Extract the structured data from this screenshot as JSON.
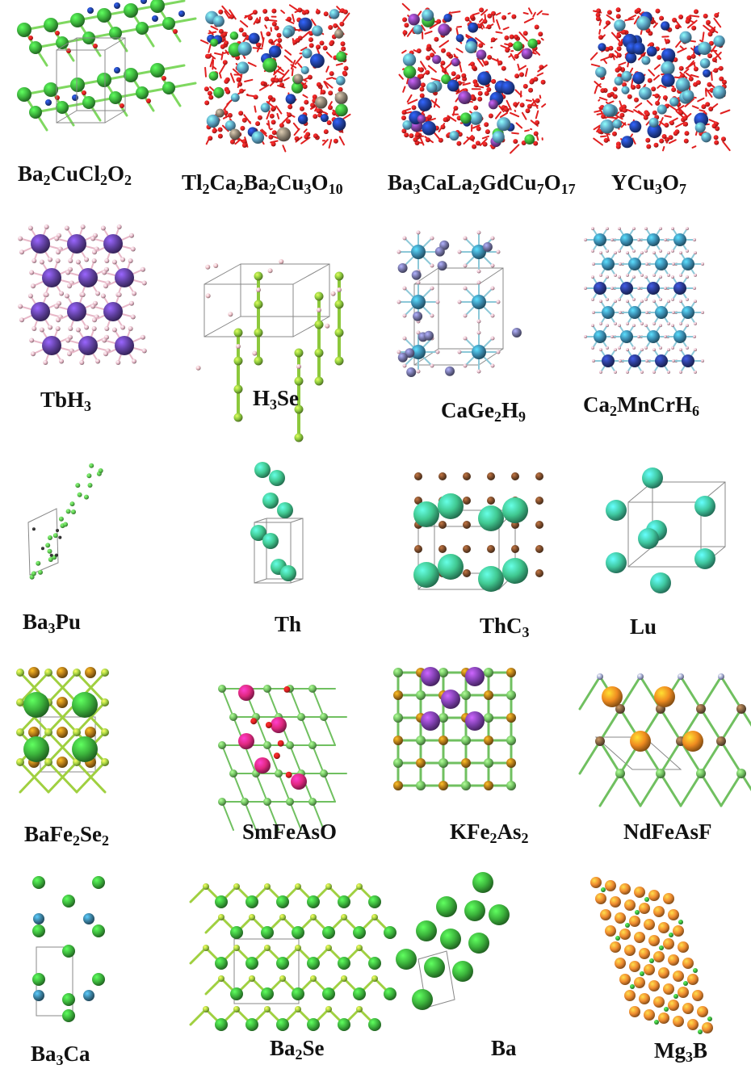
{
  "title": "",
  "rows": [
    [
      {
        "formula": [
          "Ba",
          "2",
          "CuCl",
          "2",
          "O",
          "2"
        ],
        "style": "ba2cucl2o2",
        "colors": [
          "#3cb43c",
          "#2040a0",
          "#e02020",
          "#7fd860"
        ]
      },
      {
        "formula": [
          "Tl",
          "2",
          "Ca",
          "2",
          "Ba",
          "2",
          "Cu",
          "3",
          "O",
          "10"
        ],
        "style": "dense",
        "colors": [
          "#e02020",
          "#2040a0",
          "#5aa0c0",
          "#8a8070",
          "#3cb43c"
        ]
      },
      {
        "formula": [
          "Ba",
          "3",
          "CaLa",
          "2",
          "GdCu",
          "7",
          "O",
          "17"
        ],
        "style": "dense",
        "colors": [
          "#e02020",
          "#2040a0",
          "#3cb43c",
          "#8040a0",
          "#5aa0c0"
        ]
      },
      {
        "formula": [
          "YCu",
          "3",
          "O",
          "7"
        ],
        "style": "dense",
        "colors": [
          "#e02020",
          "#2040a0",
          "#5aa0c0"
        ]
      }
    ],
    [
      {
        "formula": [
          "TbH",
          "3"
        ],
        "style": "hydride",
        "colors": [
          "#6040a0",
          "#e8b8c8"
        ]
      },
      {
        "formula": [
          "H",
          "3",
          "Se"
        ],
        "style": "h3se",
        "colors": [
          "#8cc83c",
          "#f0c0c8"
        ]
      },
      {
        "formula": [
          "CaGe",
          "2",
          "H",
          "9"
        ],
        "style": "hydride2",
        "colors": [
          "#3a8cb0",
          "#7070a0",
          "#e8b8c8"
        ]
      },
      {
        "formula": [
          "Ca",
          "2",
          "MnCrH",
          "6"
        ],
        "style": "hydride3",
        "colors": [
          "#3a8cb0",
          "#2a3a90",
          "#8040a0",
          "#e8b8c8"
        ]
      }
    ],
    [
      {
        "formula": [
          "Ba",
          "3",
          "Pu"
        ],
        "style": "sparse",
        "colors": [
          "#5cc850",
          "#303030"
        ]
      },
      {
        "formula": [
          "Th"
        ],
        "style": "th",
        "colors": [
          "#40c890"
        ]
      },
      {
        "formula": [
          "ThC",
          "3"
        ],
        "style": "thc3",
        "colors": [
          "#40c890",
          "#7a4a2a"
        ]
      },
      {
        "formula": [
          "Lu"
        ],
        "style": "lu",
        "colors": [
          "#40c8a0"
        ]
      }
    ],
    [
      {
        "formula": [
          "BaFe",
          "2",
          "Se",
          "2"
        ],
        "style": "bafe2se2",
        "colors": [
          "#3cb43c",
          "#b07818",
          "#a0d040"
        ]
      },
      {
        "formula": [
          "SmFeAsO"
        ],
        "style": "smfeaso",
        "colors": [
          "#e02880",
          "#e02020",
          "#70c060"
        ]
      },
      {
        "formula": [
          "KFe",
          "2",
          "As",
          "2"
        ],
        "style": "kfe2as2",
        "colors": [
          "#8040b0",
          "#b07818",
          "#70c060"
        ]
      },
      {
        "formula": [
          "NdFeAsF"
        ],
        "style": "ndfeasf",
        "colors": [
          "#f08c20",
          "#806040",
          "#70c060",
          "#a0a8d0"
        ]
      }
    ],
    [
      {
        "formula": [
          "Ba",
          "3",
          "Ca"
        ],
        "style": "ba3ca",
        "colors": [
          "#3cb43c",
          "#3a80a0"
        ]
      },
      {
        "formula": [
          "Ba",
          "2",
          "Se"
        ],
        "style": "ba2se",
        "colors": [
          "#3cb43c",
          "#a0d040"
        ]
      },
      {
        "formula": [
          "Ba"
        ],
        "style": "ba",
        "colors": [
          "#3cb43c"
        ]
      },
      {
        "formula": [
          "Mg",
          "3",
          "B"
        ],
        "style": "mg3b",
        "colors": [
          "#f08c30",
          "#3cb43c"
        ]
      }
    ]
  ]
}
